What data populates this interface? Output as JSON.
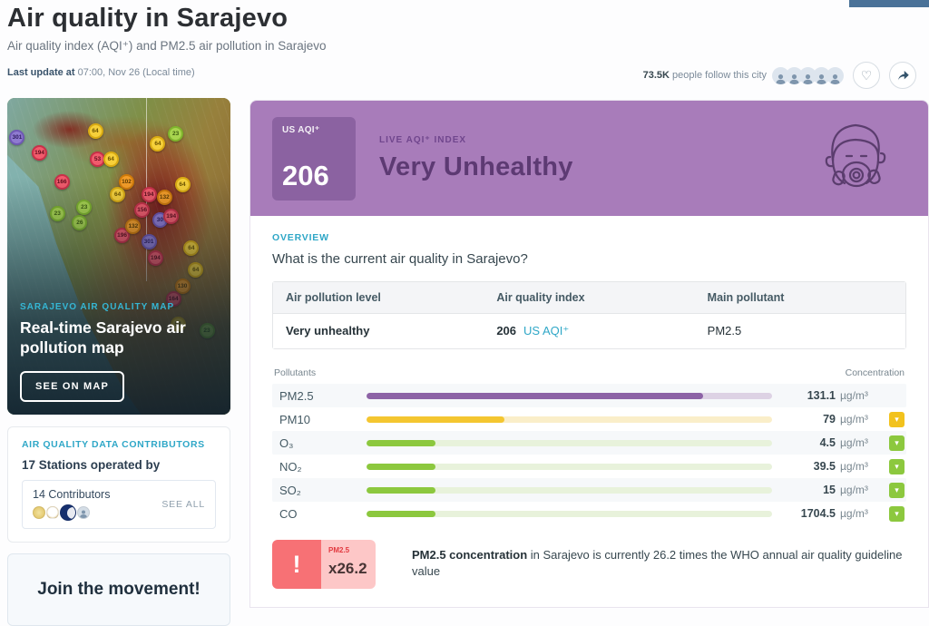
{
  "colors": {
    "accent_teal": "#2fa7c7",
    "aqi_purple_bg": "#a87cba",
    "aqi_purple_dark": "#8b62a1",
    "bar_purple": "#8d63a6",
    "bar_yellow": "#f4c630",
    "bar_green": "#8cc83e",
    "warning_red": "#f77175",
    "warning_pink": "#fdc7c7"
  },
  "header": {
    "title": "Air quality in Sarajevo",
    "subtitle": "Air quality index (AQI⁺) and PM2.5 air pollution in Sarajevo",
    "last_update_label": "Last update at",
    "last_update_value": " 07:00, Nov 26 (Local time)",
    "followers_count": "73.5K",
    "followers_text": " people follow this city",
    "follower_avatar_count": 5
  },
  "map_card": {
    "kicker": "SARAJEVO AIR QUALITY MAP",
    "title": "Real-time Sarajevo air pollution map",
    "button_label": "SEE ON MAP",
    "markers": [
      {
        "value": "301",
        "level": "purple",
        "x": 1,
        "y": 10
      },
      {
        "value": "194",
        "level": "red",
        "x": 11,
        "y": 15
      },
      {
        "value": "166",
        "level": "red",
        "x": 21,
        "y": 24
      },
      {
        "value": "64",
        "level": "yellow",
        "x": 36,
        "y": 8
      },
      {
        "value": "53",
        "level": "red",
        "x": 37,
        "y": 17
      },
      {
        "value": "64",
        "level": "yellow",
        "x": 43,
        "y": 17
      },
      {
        "value": "23",
        "level": "green",
        "x": 19,
        "y": 34
      },
      {
        "value": "23",
        "level": "green",
        "x": 31,
        "y": 32
      },
      {
        "value": "26",
        "level": "green",
        "x": 29,
        "y": 37
      },
      {
        "value": "102",
        "level": "orange",
        "x": 50,
        "y": 24
      },
      {
        "value": "64",
        "level": "yellow",
        "x": 46,
        "y": 28
      },
      {
        "value": "196",
        "level": "red",
        "x": 48,
        "y": 41
      },
      {
        "value": "132",
        "level": "orange",
        "x": 53,
        "y": 38
      },
      {
        "value": "64",
        "level": "yellow",
        "x": 64,
        "y": 12
      },
      {
        "value": "23",
        "level": "green",
        "x": 72,
        "y": 9
      },
      {
        "value": "194",
        "level": "red",
        "x": 60,
        "y": 28
      },
      {
        "value": "132",
        "level": "orange",
        "x": 67,
        "y": 29
      },
      {
        "value": "156",
        "level": "red",
        "x": 57,
        "y": 33
      },
      {
        "value": "30",
        "level": "purple",
        "x": 65,
        "y": 36
      },
      {
        "value": "194",
        "level": "red",
        "x": 70,
        "y": 35
      },
      {
        "value": "301",
        "level": "purple",
        "x": 60,
        "y": 43
      },
      {
        "value": "194",
        "level": "red",
        "x": 63,
        "y": 48
      },
      {
        "value": "64",
        "level": "yellow",
        "x": 75,
        "y": 25
      },
      {
        "value": "64",
        "level": "yellow",
        "x": 79,
        "y": 45
      },
      {
        "value": "64",
        "level": "yellow",
        "x": 81,
        "y": 52
      },
      {
        "value": "130",
        "level": "orange",
        "x": 75,
        "y": 57
      },
      {
        "value": "164",
        "level": "red",
        "x": 71,
        "y": 61
      },
      {
        "value": "54",
        "level": "yellow",
        "x": 73,
        "y": 69
      },
      {
        "value": "23",
        "level": "green",
        "x": 86,
        "y": 71
      }
    ]
  },
  "contributors": {
    "kicker": "AIR QUALITY DATA CONTRIBUTORS",
    "stations_text": "17 Stations operated by",
    "count_text": "14 Contributors",
    "see_all_label": "SEE ALL",
    "logo_types": [
      "star",
      "emblem",
      "crescent",
      "person"
    ]
  },
  "join": {
    "title": "Join the movement!"
  },
  "banner": {
    "box_label": "US AQI⁺",
    "box_value": "206",
    "live_label": "LIVE AQI⁺ INDEX",
    "status": "Very Unhealthy"
  },
  "overview": {
    "kicker": "OVERVIEW",
    "question": "What is the current air quality in Sarajevo?",
    "table": {
      "headers": [
        "Air pollution level",
        "Air quality index",
        "Main pollutant"
      ],
      "row": {
        "level": "Very unhealthy",
        "index_value": "206",
        "index_unit": "US AQI⁺",
        "main_pollutant": "PM2.5"
      }
    }
  },
  "pollutants": {
    "header_left": "Pollutants",
    "header_right": "Concentration",
    "rows": [
      {
        "name": "PM2.5",
        "value": "131.1",
        "unit": "µg/m³",
        "percent": 83,
        "color": "purple",
        "badge": "none"
      },
      {
        "name": "PM10",
        "value": "79",
        "unit": "µg/m³",
        "percent": 34,
        "color": "yellow",
        "badge": "yellow"
      },
      {
        "name": "O₃",
        "value": "4.5",
        "unit": "µg/m³",
        "percent": 17,
        "color": "green",
        "badge": "green"
      },
      {
        "name": "NO₂",
        "value": "39.5",
        "unit": "µg/m³",
        "percent": 17,
        "color": "green",
        "badge": "green"
      },
      {
        "name": "SO₂",
        "value": "15",
        "unit": "µg/m³",
        "percent": 17,
        "color": "green",
        "badge": "green"
      },
      {
        "name": "CO",
        "value": "1704.5",
        "unit": "µg/m³",
        "percent": 17,
        "color": "green",
        "badge": "green"
      }
    ]
  },
  "warning": {
    "badge_label": "PM2.5",
    "badge_exclaim": "!",
    "badge_value": "x26.2",
    "text_bold": "PM2.5 concentration",
    "text_rest": " in Sarajevo is currently 26.2 times the WHO annual air quality guideline value"
  }
}
